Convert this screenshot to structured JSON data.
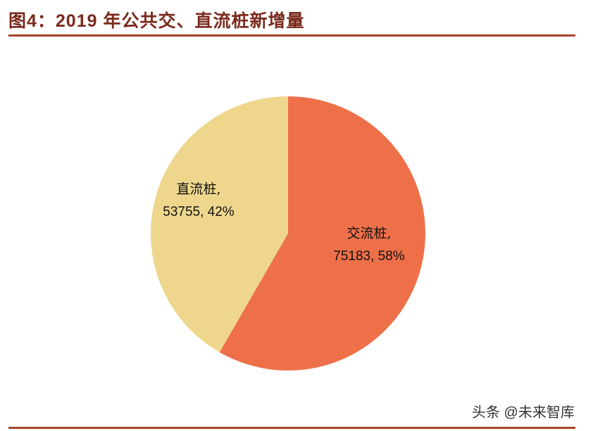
{
  "title": "图4：2019 年公共交、直流桩新增量",
  "watermark": "头条 @未来智库",
  "chart_data": {
    "type": "pie",
    "title": "图4：2019 年公共交、直流桩新增量",
    "categories": [
      "交流桩",
      "直流桩"
    ],
    "values": [
      75183,
      53755
    ],
    "percentages": [
      58,
      42
    ],
    "data_labels": [
      {
        "name": "交流桩,",
        "value": "75183, 58%"
      },
      {
        "name": "直流桩,",
        "value": "53755, 42%"
      }
    ],
    "colors": [
      "#ee7049",
      "#eed78c"
    ],
    "legend": "none",
    "start_angle": "top, clockwise"
  }
}
